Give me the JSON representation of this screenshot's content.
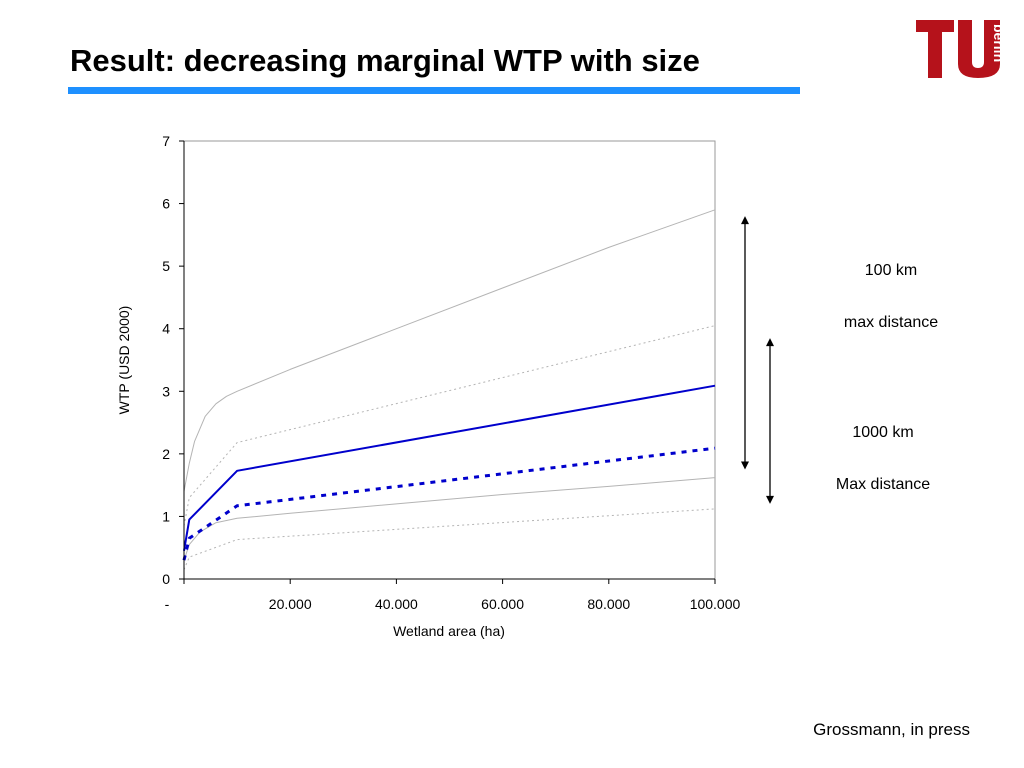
{
  "slide": {
    "title": "Result: decreasing marginal WTP with size",
    "logo_text": "berlin",
    "source": "Grossmann, in press"
  },
  "annotations": {
    "km100": "100 km",
    "max_distance_100": "max distance",
    "km1000": "1000 km",
    "max_distance_1000": "Max distance"
  },
  "colors": {
    "title_rule": "#1e90ff",
    "logo": "#b5121b",
    "main_series": "#0000cc",
    "band_lines": "#b4b4b4"
  },
  "chart_data": {
    "type": "line",
    "title": "",
    "xlabel": "Wetland area (ha)",
    "ylabel": "WTP (USD 2000)",
    "xlim": [
      0,
      100000
    ],
    "ylim": [
      0,
      7
    ],
    "x_ticks": [
      0,
      20000,
      40000,
      60000,
      80000,
      100000
    ],
    "x_tick_labels": [
      "-",
      "20.000",
      "40.000",
      "60.000",
      "80.000",
      "100.000"
    ],
    "y_ticks": [
      0,
      1,
      2,
      3,
      4,
      5,
      6,
      7
    ],
    "y_tick_labels": [
      "0",
      "1",
      "2",
      "3",
      "4",
      "5",
      "6",
      "7"
    ],
    "grid": false,
    "series": [
      {
        "style": "solid-thick",
        "color": "#0000cc",
        "x": [
          0,
          1000,
          10000,
          100000
        ],
        "y": [
          0.45,
          0.95,
          1.73,
          3.09
        ]
      },
      {
        "style": "dashed-thick",
        "color": "#0000cc",
        "x": [
          0,
          1000,
          10000,
          100000
        ],
        "y": [
          0.3,
          0.65,
          1.17,
          2.09
        ]
      },
      {
        "style": "solid-thin",
        "color": "#b4b4b4",
        "x": [
          0,
          1000,
          2000,
          4000,
          6000,
          8000,
          10000,
          20000,
          40000,
          60000,
          80000,
          100000
        ],
        "y": [
          1.4,
          1.85,
          2.2,
          2.6,
          2.8,
          2.92,
          3.0,
          3.35,
          4.0,
          4.65,
          5.3,
          5.9
        ]
      },
      {
        "style": "dotted-thin",
        "color": "#b4b4b4",
        "x": [
          0,
          1000,
          10000,
          100000
        ],
        "y": [
          0.85,
          1.3,
          2.18,
          4.05
        ]
      },
      {
        "style": "solid-thin",
        "color": "#b4b4b4",
        "x": [
          0,
          1000,
          3000,
          6000,
          10000,
          20000,
          40000,
          60000,
          80000,
          100000
        ],
        "y": [
          0.3,
          0.55,
          0.75,
          0.9,
          0.97,
          1.05,
          1.2,
          1.35,
          1.48,
          1.62
        ]
      },
      {
        "style": "dotted-thin",
        "color": "#b4b4b4",
        "x": [
          0,
          1000,
          10000,
          100000
        ],
        "y": [
          0.15,
          0.35,
          0.63,
          1.12
        ]
      }
    ],
    "ranges": [
      {
        "label": "100 km",
        "from": 1.75,
        "to": 5.8
      },
      {
        "label": "1000 km",
        "from": 1.2,
        "to": 3.85
      }
    ]
  }
}
